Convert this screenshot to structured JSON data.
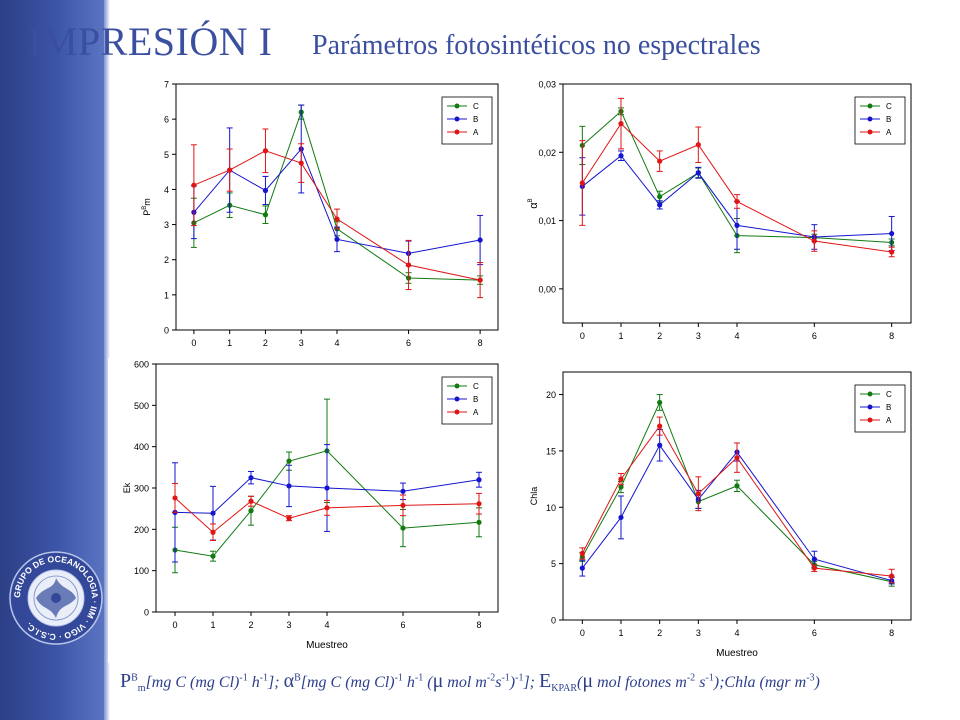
{
  "header": {
    "title": "IMPRESIÓN I",
    "subtitle": "Parámetros fotosintéticos no espectrales"
  },
  "logo": {
    "icon": "oceanography-group-seal-icon",
    "text": "GRUPO DE OCEANOLOGIA · IIM · VIGO · C.S.I.C."
  },
  "footer": {
    "p_sym": "P",
    "p_sup": "B",
    "p_sub": "m",
    "p_units": "[mg C (mg Cl)",
    "p_units_sup1": "-1",
    "p_units_mid": " h",
    "p_units_sup2": "-1",
    "p_units_end": "];",
    "alpha_sym": "α",
    "alpha_sup": "B",
    "alpha_units": "[mg C (mg Cl)",
    "alpha_sup1": "-1",
    "alpha_mid": " h",
    "alpha_sup2": "-1",
    "alpha_mid2": " (",
    "mu1": "μ",
    "alpha_mid3": " mol m",
    "alpha_sup3": "-2",
    "alpha_mid4": "s",
    "alpha_sup4": "-1",
    "alpha_mid5": ")",
    "alpha_sup5": "-1",
    "alpha_end": "];",
    "ek_sym": "E",
    "ek_sub": "KPAR",
    "ek_units1": "(",
    "mu2": "μ",
    "ek_units2": " mol fotones m",
    "ek_sup1": "-2",
    "ek_units3": " s",
    "ek_sup2": "-1",
    "ek_units4": ");",
    "chla_text": "Chla (mgr m",
    "chla_sup": "-3",
    "chla_end": ")"
  },
  "colors": {
    "C": "#117a11",
    "B": "#1515d0",
    "A": "#e01515",
    "title": "#3b4fa0"
  },
  "chart_data": [
    {
      "type": "line",
      "ylabel": "P B m",
      "xlabel": "",
      "x": [
        0,
        1,
        2,
        3,
        4,
        6,
        8
      ],
      "xticks": [
        "0",
        "1",
        "2",
        "3",
        "4",
        "6",
        "8"
      ],
      "ylim": [
        0,
        7
      ],
      "yticks": [
        "0",
        "1",
        "2",
        "3",
        "4",
        "5",
        "6",
        "7"
      ],
      "legend": "top-right",
      "series": [
        {
          "name": "C",
          "values": [
            3.05,
            3.55,
            3.28,
            6.2,
            2.88,
            1.48,
            1.42
          ],
          "errors": [
            0.7,
            0.35,
            0.25,
            0.2,
            0.2,
            0.15,
            0.12
          ]
        },
        {
          "name": "B",
          "values": [
            3.35,
            4.55,
            3.97,
            5.15,
            2.58,
            2.18,
            2.56
          ],
          "errors": [
            0.75,
            1.2,
            0.4,
            1.25,
            0.35,
            0.35,
            0.7
          ]
        },
        {
          "name": "A",
          "values": [
            4.12,
            4.55,
            5.1,
            4.75,
            3.16,
            1.85,
            1.42
          ],
          "errors": [
            1.15,
            0.6,
            0.62,
            0.55,
            0.28,
            0.7,
            0.5
          ]
        }
      ]
    },
    {
      "type": "line",
      "ylabel": "α B",
      "xlabel": "",
      "x": [
        0,
        1,
        2,
        3,
        4,
        6,
        8
      ],
      "xticks": [
        "0",
        "1",
        "2",
        "3",
        "4",
        "6",
        "8"
      ],
      "ylim": [
        -0.005,
        0.03
      ],
      "ytickvals": [
        0,
        0.01,
        0.02,
        0.03
      ],
      "yticks": [
        "0,00",
        "0,01",
        "0,02",
        "0,03"
      ],
      "legend": "top-right",
      "series": [
        {
          "name": "C",
          "values": [
            0.021,
            0.026,
            0.0135,
            0.017,
            0.0078,
            0.0075,
            0.0068
          ],
          "errors": [
            0.0028,
            0.0005,
            0.0008,
            0.0007,
            0.0025,
            0.0005,
            0.0005
          ]
        },
        {
          "name": "B",
          "values": [
            0.015,
            0.0195,
            0.0123,
            0.017,
            0.0093,
            0.0076,
            0.0081
          ],
          "errors": [
            0.0042,
            0.0007,
            0.0006,
            0.0008,
            0.0035,
            0.0018,
            0.0025
          ]
        },
        {
          "name": "A",
          "values": [
            0.0155,
            0.0242,
            0.0187,
            0.0211,
            0.0128,
            0.007,
            0.0054
          ],
          "errors": [
            0.0062,
            0.0037,
            0.0015,
            0.0026,
            0.001,
            0.0015,
            0.0007
          ]
        }
      ]
    },
    {
      "type": "line",
      "ylabel": "Ek",
      "xlabel": "Muestreo",
      "x": [
        0,
        1,
        2,
        3,
        4,
        6,
        8
      ],
      "xticks": [
        "0",
        "1",
        "2",
        "3",
        "4",
        "6",
        "8"
      ],
      "ylim": [
        0,
        600
      ],
      "yticks": [
        "0",
        "100",
        "200",
        "300",
        "400",
        "500",
        "600"
      ],
      "legend": "top-right",
      "series": [
        {
          "name": "C",
          "values": [
            150,
            135,
            245,
            365,
            390,
            203,
            217
          ],
          "errors": [
            55,
            12,
            35,
            22,
            125,
            45,
            35
          ]
        },
        {
          "name": "B",
          "values": [
            241,
            239,
            325,
            305,
            300,
            292,
            320
          ],
          "errors": [
            120,
            65,
            15,
            50,
            105,
            20,
            18
          ]
        },
        {
          "name": "A",
          "values": [
            276,
            193,
            268,
            227,
            252,
            258,
            262
          ],
          "errors": [
            35,
            20,
            12,
            6,
            18,
            25,
            25
          ]
        }
      ]
    },
    {
      "type": "line",
      "ylabel": "Chla",
      "xlabel": "Muestreo",
      "x": [
        0,
        1,
        2,
        3,
        4,
        6,
        8
      ],
      "xticks": [
        "0",
        "1",
        "2",
        "3",
        "4",
        "6",
        "8"
      ],
      "ylim": [
        0,
        22
      ],
      "yticks": [
        "0",
        "5",
        "10",
        "15",
        "20"
      ],
      "ytickvals": [
        0,
        5,
        10,
        15,
        20
      ],
      "legend": "top-right",
      "series": [
        {
          "name": "C",
          "values": [
            5.6,
            11.8,
            19.3,
            10.5,
            11.9,
            4.9,
            3.4
          ],
          "errors": [
            0.4,
            0.5,
            0.7,
            0.6,
            0.5,
            0.3,
            0.4
          ]
        },
        {
          "name": "B",
          "values": [
            4.6,
            9.1,
            15.5,
            10.7,
            14.9,
            5.4,
            3.5
          ],
          "errors": [
            0.7,
            1.9,
            1.4,
            0.8,
            0.8,
            0.7,
            0.3
          ]
        },
        {
          "name": "A",
          "values": [
            5.9,
            12.5,
            17.2,
            11.2,
            14.4,
            4.6,
            3.9
          ],
          "errors": [
            0.5,
            0.5,
            0.8,
            1.5,
            1.3,
            0.3,
            0.6
          ]
        }
      ]
    }
  ]
}
